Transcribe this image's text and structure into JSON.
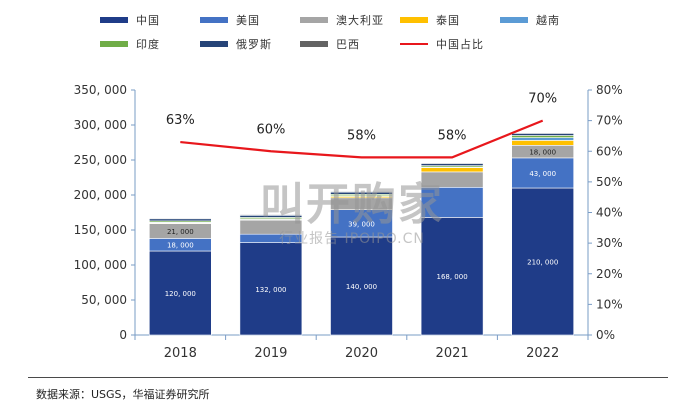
{
  "chart_data": {
    "type": "bar",
    "stacked": true,
    "categories": [
      "2018",
      "2019",
      "2020",
      "2021",
      "2022"
    ],
    "series": [
      {
        "name": "中国",
        "color": "#1f3c88",
        "values": [
          120000,
          132000,
          140000,
          168000,
          210000
        ]
      },
      {
        "name": "美国",
        "color": "#4472c4",
        "values": [
          18000,
          12000,
          39000,
          43000,
          43000
        ]
      },
      {
        "name": "澳大利亚",
        "color": "#a5a5a5",
        "values": [
          21000,
          20000,
          17000,
          22000,
          18000
        ]
      },
      {
        "name": "泰国",
        "color": "#ffc000",
        "values": [
          1000,
          1000,
          2000,
          6000,
          7000
        ]
      },
      {
        "name": "越南",
        "color": "#5b9bd5",
        "values": [
          1000,
          1000,
          1000,
          1000,
          4000
        ]
      },
      {
        "name": "印度",
        "color": "#70ad47",
        "values": [
          2000,
          2000,
          2000,
          2000,
          3000
        ]
      },
      {
        "name": "俄罗斯",
        "color": "#264478",
        "values": [
          3000,
          3000,
          3000,
          3000,
          3000
        ]
      },
      {
        "name": "巴西",
        "color": "#636363",
        "values": [
          1000,
          1000,
          1000,
          1000,
          1000
        ]
      }
    ],
    "line_series": {
      "name": "中国占比",
      "color": "#e8171c",
      "values": [
        63,
        60,
        58,
        58,
        70
      ],
      "labels": [
        "63%",
        "60%",
        "58%",
        "58%",
        "70%"
      ]
    },
    "data_labels": [
      {
        "series": 0,
        "texts": [
          "120, 000",
          "132, 000",
          "140, 000",
          "168, 000",
          "210, 000"
        ]
      },
      {
        "series": 1,
        "texts": [
          "18, 000",
          "",
          "39, 000",
          "",
          "43, 000"
        ]
      },
      {
        "series": 2,
        "texts": [
          "21, 000",
          "",
          "",
          "",
          "18, 000"
        ]
      }
    ],
    "yleft": {
      "ticks": [
        "0",
        "50, 000",
        "100, 000",
        "150, 000",
        "200, 000",
        "250, 000",
        "300, 000",
        "350, 000"
      ],
      "lim": [
        0,
        350000
      ]
    },
    "yright": {
      "ticks": [
        "0%",
        "10%",
        "20%",
        "30%",
        "40%",
        "50%",
        "60%",
        "70%",
        "80%"
      ],
      "lim": [
        0,
        80
      ]
    }
  },
  "legend": {
    "row1": [
      "中国",
      "美国",
      "澳大利亚",
      "泰国",
      "越南"
    ],
    "row2": [
      "印度",
      "俄罗斯",
      "巴西",
      "中国占比"
    ]
  },
  "watermark": {
    "main": "叫开购家",
    "sub": "行业报告 IPOIPO.CN"
  },
  "source": "数据来源：USGS，华福证券研究所"
}
